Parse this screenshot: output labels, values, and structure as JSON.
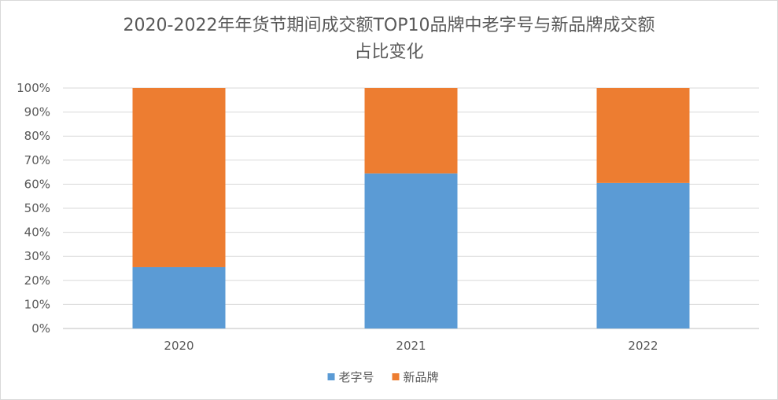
{
  "chart_data": {
    "type": "bar",
    "stacked": true,
    "title_line1": "2020-2022年年货节期间成交额TOP10品牌中老字号与新品牌成交额",
    "title_line2": "占比变化",
    "categories": [
      "2020",
      "2021",
      "2022"
    ],
    "series": [
      {
        "name": "老字号",
        "values": [
          0.255,
          0.645,
          0.605
        ],
        "color": "#5b9bd5"
      },
      {
        "name": "新品牌",
        "values": [
          0.745,
          0.355,
          0.395
        ],
        "color": "#ed7d31"
      }
    ],
    "ylim": [
      0,
      1
    ],
    "yticks": [
      "0%",
      "10%",
      "20%",
      "30%",
      "40%",
      "50%",
      "60%",
      "70%",
      "80%",
      "90%",
      "100%"
    ],
    "grid": true,
    "legend_position": "bottom"
  }
}
